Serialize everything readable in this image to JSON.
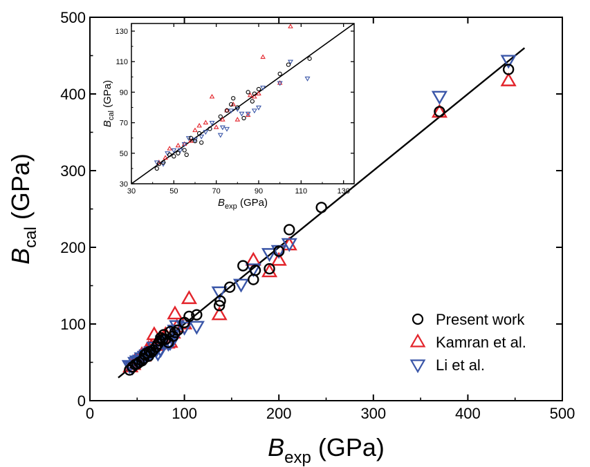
{
  "chart_data": [
    {
      "type": "scatter",
      "xlabel": {
        "base": "B",
        "sub": "exp",
        "unit": " (GPa)"
      },
      "ylabel": {
        "base": "B",
        "sub": "cal",
        "unit": " (GPa)"
      },
      "xlim": [
        0,
        500
      ],
      "ylim": [
        0,
        500
      ],
      "xticks": [
        0,
        100,
        200,
        300,
        400,
        500
      ],
      "yticks": [
        0,
        100,
        200,
        300,
        400,
        500
      ],
      "grid": false,
      "legend_position": "bottom-right",
      "fit_line": {
        "x": [
          30,
          460
        ],
        "y": [
          30,
          460
        ]
      },
      "series": [
        {
          "name": "Present work",
          "marker": "circle",
          "color": "#000000",
          "x": [
            42,
            45,
            48,
            50,
            52,
            55,
            57,
            58,
            60,
            62,
            63,
            65,
            67,
            70,
            72,
            74,
            75,
            77,
            78,
            80,
            83,
            85,
            88,
            90,
            93,
            100,
            105,
            113,
            137,
            138,
            148,
            162,
            173,
            175,
            190,
            200,
            211,
            245,
            370,
            443
          ],
          "y": [
            40,
            44,
            47,
            48,
            50,
            52,
            55,
            60,
            62,
            58,
            64,
            63,
            66,
            70,
            74,
            78,
            82,
            80,
            86,
            80,
            76,
            90,
            84,
            89,
            92,
            102,
            110,
            112,
            124,
            130,
            148,
            176,
            158,
            170,
            172,
            195,
            223,
            252,
            377,
            432
          ]
        },
        {
          "name": "Kamran et al.",
          "marker": "triangle-up",
          "color": "#e3242b",
          "x": [
            43,
            46,
            48,
            52,
            55,
            57,
            60,
            62,
            65,
            68,
            70,
            73,
            75,
            78,
            80,
            82,
            85,
            88,
            90,
            92,
            100,
            105,
            137,
            173,
            190,
            200,
            211,
            370,
            443
          ],
          "y": [
            44,
            47,
            52,
            55,
            60,
            58,
            65,
            68,
            70,
            86,
            72,
            74,
            80,
            82,
            86,
            75,
            76,
            88,
            113,
            96,
            100,
            133,
            112,
            183,
            168,
            183,
            203,
            376,
            417
          ]
        },
        {
          "name": "Li et al.",
          "marker": "triangle-down",
          "color": "#3a56a8",
          "x": [
            42,
            45,
            48,
            50,
            53,
            55,
            58,
            60,
            63,
            65,
            68,
            70,
            72,
            75,
            77,
            80,
            83,
            85,
            88,
            90,
            92,
            100,
            113,
            137,
            160,
            173,
            190,
            200,
            211,
            370,
            443
          ],
          "y": [
            46,
            44,
            50,
            52,
            53,
            56,
            58,
            60,
            62,
            64,
            70,
            66,
            62,
            67,
            78,
            77,
            75,
            76,
            80,
            92,
            98,
            96,
            97,
            142,
            152,
            172,
            192,
            196,
            205,
            397,
            444
          ]
        }
      ]
    },
    {
      "type": "scatter",
      "role": "inset",
      "xlabel": {
        "base": "B",
        "sub": "exp",
        "unit": " (GPa)"
      },
      "ylabel": {
        "base": "B",
        "sub": "cal",
        "unit": " (GPa)"
      },
      "xlim": [
        30,
        135
      ],
      "ylim": [
        30,
        135
      ],
      "xticks": [
        30,
        50,
        70,
        90,
        110,
        130
      ],
      "yticks": [
        30,
        50,
        70,
        90,
        110,
        130
      ],
      "grid": false,
      "fit_line": {
        "x": [
          30,
          135
        ],
        "y": [
          30,
          135
        ]
      },
      "series": [
        {
          "name": "Present work",
          "marker": "circle",
          "color": "#000000",
          "x": [
            42,
            43,
            45,
            48,
            50,
            52,
            55,
            56,
            58,
            60,
            62,
            63,
            67,
            72,
            75,
            77,
            78,
            80,
            83,
            85,
            87,
            88,
            90,
            100,
            104,
            114
          ],
          "y": [
            40,
            43,
            44,
            49,
            48,
            50,
            52,
            49,
            60,
            58,
            63,
            57,
            66,
            74,
            78,
            82,
            86,
            80,
            73,
            90,
            84,
            89,
            92,
            102,
            108,
            112
          ],
          "marker_px": 2.6
        },
        {
          "name": "Kamran et al.",
          "marker": "triangle-up",
          "color": "#e3242b",
          "x": [
            43,
            46,
            48,
            52,
            55,
            58,
            60,
            62,
            65,
            68,
            70,
            73,
            75,
            78,
            80,
            85,
            86,
            88,
            90,
            92,
            100,
            105
          ],
          "y": [
            44,
            47,
            53,
            55,
            56,
            58,
            65,
            68,
            70,
            87,
            67,
            72,
            78,
            82,
            72,
            75,
            88,
            87,
            89,
            113,
            96,
            133
          ],
          "marker_px": 3
        },
        {
          "name": "Li et al.",
          "marker": "triangle-down",
          "color": "#3a56a8",
          "x": [
            42,
            45,
            47,
            50,
            53,
            55,
            57,
            60,
            63,
            65,
            68,
            72,
            73,
            75,
            77,
            80,
            82,
            85,
            88,
            90,
            92,
            100,
            105,
            113
          ],
          "y": [
            44,
            43,
            50,
            52,
            52,
            56,
            60,
            59,
            61,
            64,
            70,
            62,
            67,
            66,
            78,
            79,
            76,
            76,
            78,
            80,
            93,
            96,
            110,
            99
          ],
          "marker_px": 3.2
        }
      ]
    }
  ]
}
